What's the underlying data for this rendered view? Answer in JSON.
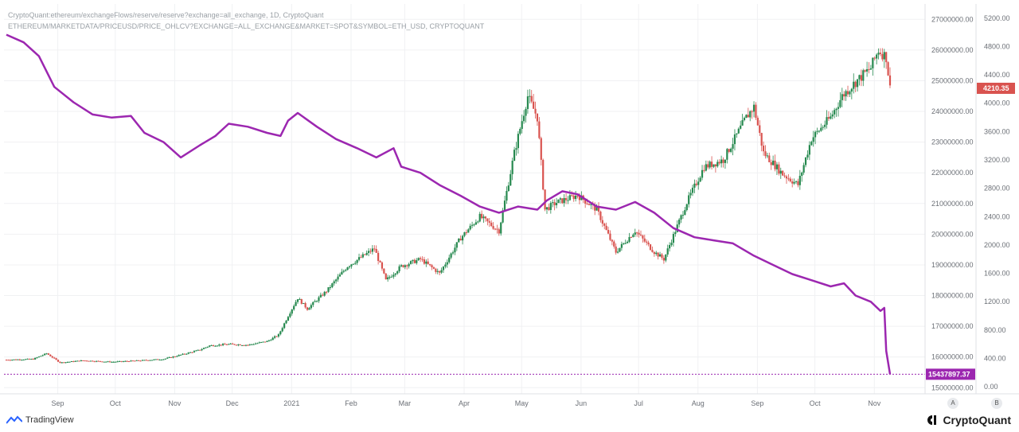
{
  "header": {
    "line1": "CryptoQuant:ethereum/exchangeFlows/reserve/reserve?exchange=all_exchange, 1D, CryptoQuant",
    "line2": "ETHEREUM/MARKETDATA/PRICEUSD/PRICE_OHLCV?EXCHANGE=ALL_EXCHANGE&MARKET=SPOT&SYMBOL=ETH_USD, CRYPTOQUANT"
  },
  "footer": {
    "left_brand": "TradingView",
    "right_brand": "CryptoQuant"
  },
  "scale_buttons": {
    "a": "A",
    "b": "B"
  },
  "colors": {
    "reserve": "#9c27b0",
    "up": "#26894f",
    "down": "#d9534f",
    "price_badge": "#d9534f",
    "reserve_badge": "#9c27b0"
  },
  "chart_data": {
    "type": "line",
    "x_range": [
      "2020-08-11",
      "2021-11-15"
    ],
    "x_tick_labels": [
      "Sep",
      "Oct",
      "Nov",
      "Dec",
      "2021",
      "Feb",
      "Mar",
      "Apr",
      "May",
      "Jun",
      "Jul",
      "Aug",
      "Sep",
      "Oct",
      "Nov"
    ],
    "left_axis": {
      "series": "reserve",
      "range": [
        14800000,
        27500000
      ],
      "tick_labels": [
        "27000000.00",
        "26000000.00",
        "25000000.00",
        "24000000.00",
        "23000000.00",
        "22000000.00",
        "21000000.00",
        "20000000.00",
        "19000000.00",
        "18000000.00",
        "17000000.00",
        "16000000.00",
        "15000000.00"
      ],
      "tick_values": [
        27000000,
        26000000,
        25000000,
        24000000,
        23000000,
        22000000,
        21000000,
        20000000,
        19000000,
        18000000,
        17000000,
        16000000,
        15000000
      ],
      "last_value_label": "15437897.37"
    },
    "right_axis": {
      "series": "price",
      "range": [
        -100,
        5400
      ],
      "tick_labels": [
        "5200.00",
        "4800.00",
        "4400.00",
        "4000.00",
        "3600.00",
        "3200.00",
        "2800.00",
        "2400.00",
        "2000.00",
        "1600.00",
        "1200.00",
        "800.00",
        "400.00",
        "0.00"
      ],
      "tick_values": [
        5200,
        4800,
        4400,
        4000,
        3600,
        3200,
        2800,
        2400,
        2000,
        1600,
        1200,
        800,
        400,
        0
      ],
      "last_value_label": "4210.35"
    },
    "series": [
      {
        "kind": "line",
        "points": [
          [
            "2020-08-11",
            26500000
          ],
          [
            "2020-08-20",
            26250000
          ],
          [
            "2020-08-28",
            25800000
          ],
          [
            "2020-09-05",
            24800000
          ],
          [
            "2020-09-15",
            24300000
          ],
          [
            "2020-09-25",
            23900000
          ],
          [
            "2020-10-05",
            23800000
          ],
          [
            "2020-10-15",
            23850000
          ],
          [
            "2020-10-22",
            23300000
          ],
          [
            "2020-11-01",
            23000000
          ],
          [
            "2020-11-10",
            22500000
          ],
          [
            "2020-11-20",
            22900000
          ],
          [
            "2020-11-28",
            23200000
          ],
          [
            "2020-12-05",
            23600000
          ],
          [
            "2020-12-15",
            23500000
          ],
          [
            "2020-12-25",
            23300000
          ],
          [
            "2021-01-01",
            23200000
          ],
          [
            "2021-01-05",
            23700000
          ],
          [
            "2021-01-10",
            23950000
          ],
          [
            "2021-01-20",
            23500000
          ],
          [
            "2021-01-30",
            23100000
          ],
          [
            "2021-02-10",
            22800000
          ],
          [
            "2021-02-20",
            22500000
          ],
          [
            "2021-03-01",
            22800000
          ],
          [
            "2021-03-05",
            22200000
          ],
          [
            "2021-03-15",
            22000000
          ],
          [
            "2021-03-25",
            21600000
          ],
          [
            "2021-04-05",
            21250000
          ],
          [
            "2021-04-15",
            20900000
          ],
          [
            "2021-04-25",
            20700000
          ],
          [
            "2021-05-05",
            20900000
          ],
          [
            "2021-05-15",
            20800000
          ],
          [
            "2021-05-20",
            21100000
          ],
          [
            "2021-05-28",
            21400000
          ],
          [
            "2021-06-05",
            21300000
          ],
          [
            "2021-06-15",
            20900000
          ],
          [
            "2021-06-25",
            20800000
          ],
          [
            "2021-07-05",
            21050000
          ],
          [
            "2021-07-15",
            20700000
          ],
          [
            "2021-07-25",
            20200000
          ],
          [
            "2021-08-05",
            19900000
          ],
          [
            "2021-08-15",
            19800000
          ],
          [
            "2021-08-25",
            19700000
          ],
          [
            "2021-09-05",
            19300000
          ],
          [
            "2021-09-15",
            19000000
          ],
          [
            "2021-09-25",
            18700000
          ],
          [
            "2021-10-05",
            18500000
          ],
          [
            "2021-10-15",
            18300000
          ],
          [
            "2021-10-22",
            18400000
          ],
          [
            "2021-10-28",
            18000000
          ],
          [
            "2021-11-05",
            17800000
          ],
          [
            "2021-11-10",
            17500000
          ],
          [
            "2021-11-12",
            17600000
          ],
          [
            "2021-11-13",
            16200000
          ],
          [
            "2021-11-15",
            15437897.37
          ]
        ]
      },
      {
        "kind": "candlestick",
        "points": [
          [
            "2020-08-11",
            380
          ],
          [
            "2020-08-25",
            390
          ],
          [
            "2020-09-01",
            470
          ],
          [
            "2020-09-08",
            340
          ],
          [
            "2020-09-20",
            370
          ],
          [
            "2020-10-05",
            350
          ],
          [
            "2020-10-20",
            370
          ],
          [
            "2020-11-01",
            390
          ],
          [
            "2020-11-10",
            450
          ],
          [
            "2020-11-20",
            520
          ],
          [
            "2020-11-25",
            580
          ],
          [
            "2020-12-05",
            600
          ],
          [
            "2020-12-15",
            590
          ],
          [
            "2020-12-25",
            640
          ],
          [
            "2020-12-31",
            730
          ],
          [
            "2021-01-05",
            1000
          ],
          [
            "2021-01-10",
            1250
          ],
          [
            "2021-01-15",
            1100
          ],
          [
            "2021-01-25",
            1350
          ],
          [
            "2021-02-05",
            1700
          ],
          [
            "2021-02-19",
            1950
          ],
          [
            "2021-02-25",
            1500
          ],
          [
            "2021-03-05",
            1700
          ],
          [
            "2021-03-15",
            1800
          ],
          [
            "2021-03-25",
            1600
          ],
          [
            "2021-04-05",
            2100
          ],
          [
            "2021-04-15",
            2400
          ],
          [
            "2021-04-25",
            2200
          ],
          [
            "2021-05-03",
            3300
          ],
          [
            "2021-05-10",
            4100
          ],
          [
            "2021-05-15",
            3800
          ],
          [
            "2021-05-19",
            2500
          ],
          [
            "2021-05-25",
            2600
          ],
          [
            "2021-06-05",
            2700
          ],
          [
            "2021-06-15",
            2500
          ],
          [
            "2021-06-25",
            1900
          ],
          [
            "2021-07-05",
            2200
          ],
          [
            "2021-07-15",
            1900
          ],
          [
            "2021-07-20",
            1800
          ],
          [
            "2021-08-01",
            2600
          ],
          [
            "2021-08-10",
            3100
          ],
          [
            "2021-08-20",
            3200
          ],
          [
            "2021-09-01",
            3800
          ],
          [
            "2021-09-05",
            3950
          ],
          [
            "2021-09-10",
            3300
          ],
          [
            "2021-09-20",
            3000
          ],
          [
            "2021-09-28",
            2850
          ],
          [
            "2021-10-05",
            3500
          ],
          [
            "2021-10-15",
            3800
          ],
          [
            "2021-10-21",
            4100
          ],
          [
            "2021-10-28",
            4300
          ],
          [
            "2021-11-05",
            4500
          ],
          [
            "2021-11-09",
            4750
          ],
          [
            "2021-11-13",
            4650
          ],
          [
            "2021-11-15",
            4210.35
          ]
        ]
      }
    ]
  }
}
